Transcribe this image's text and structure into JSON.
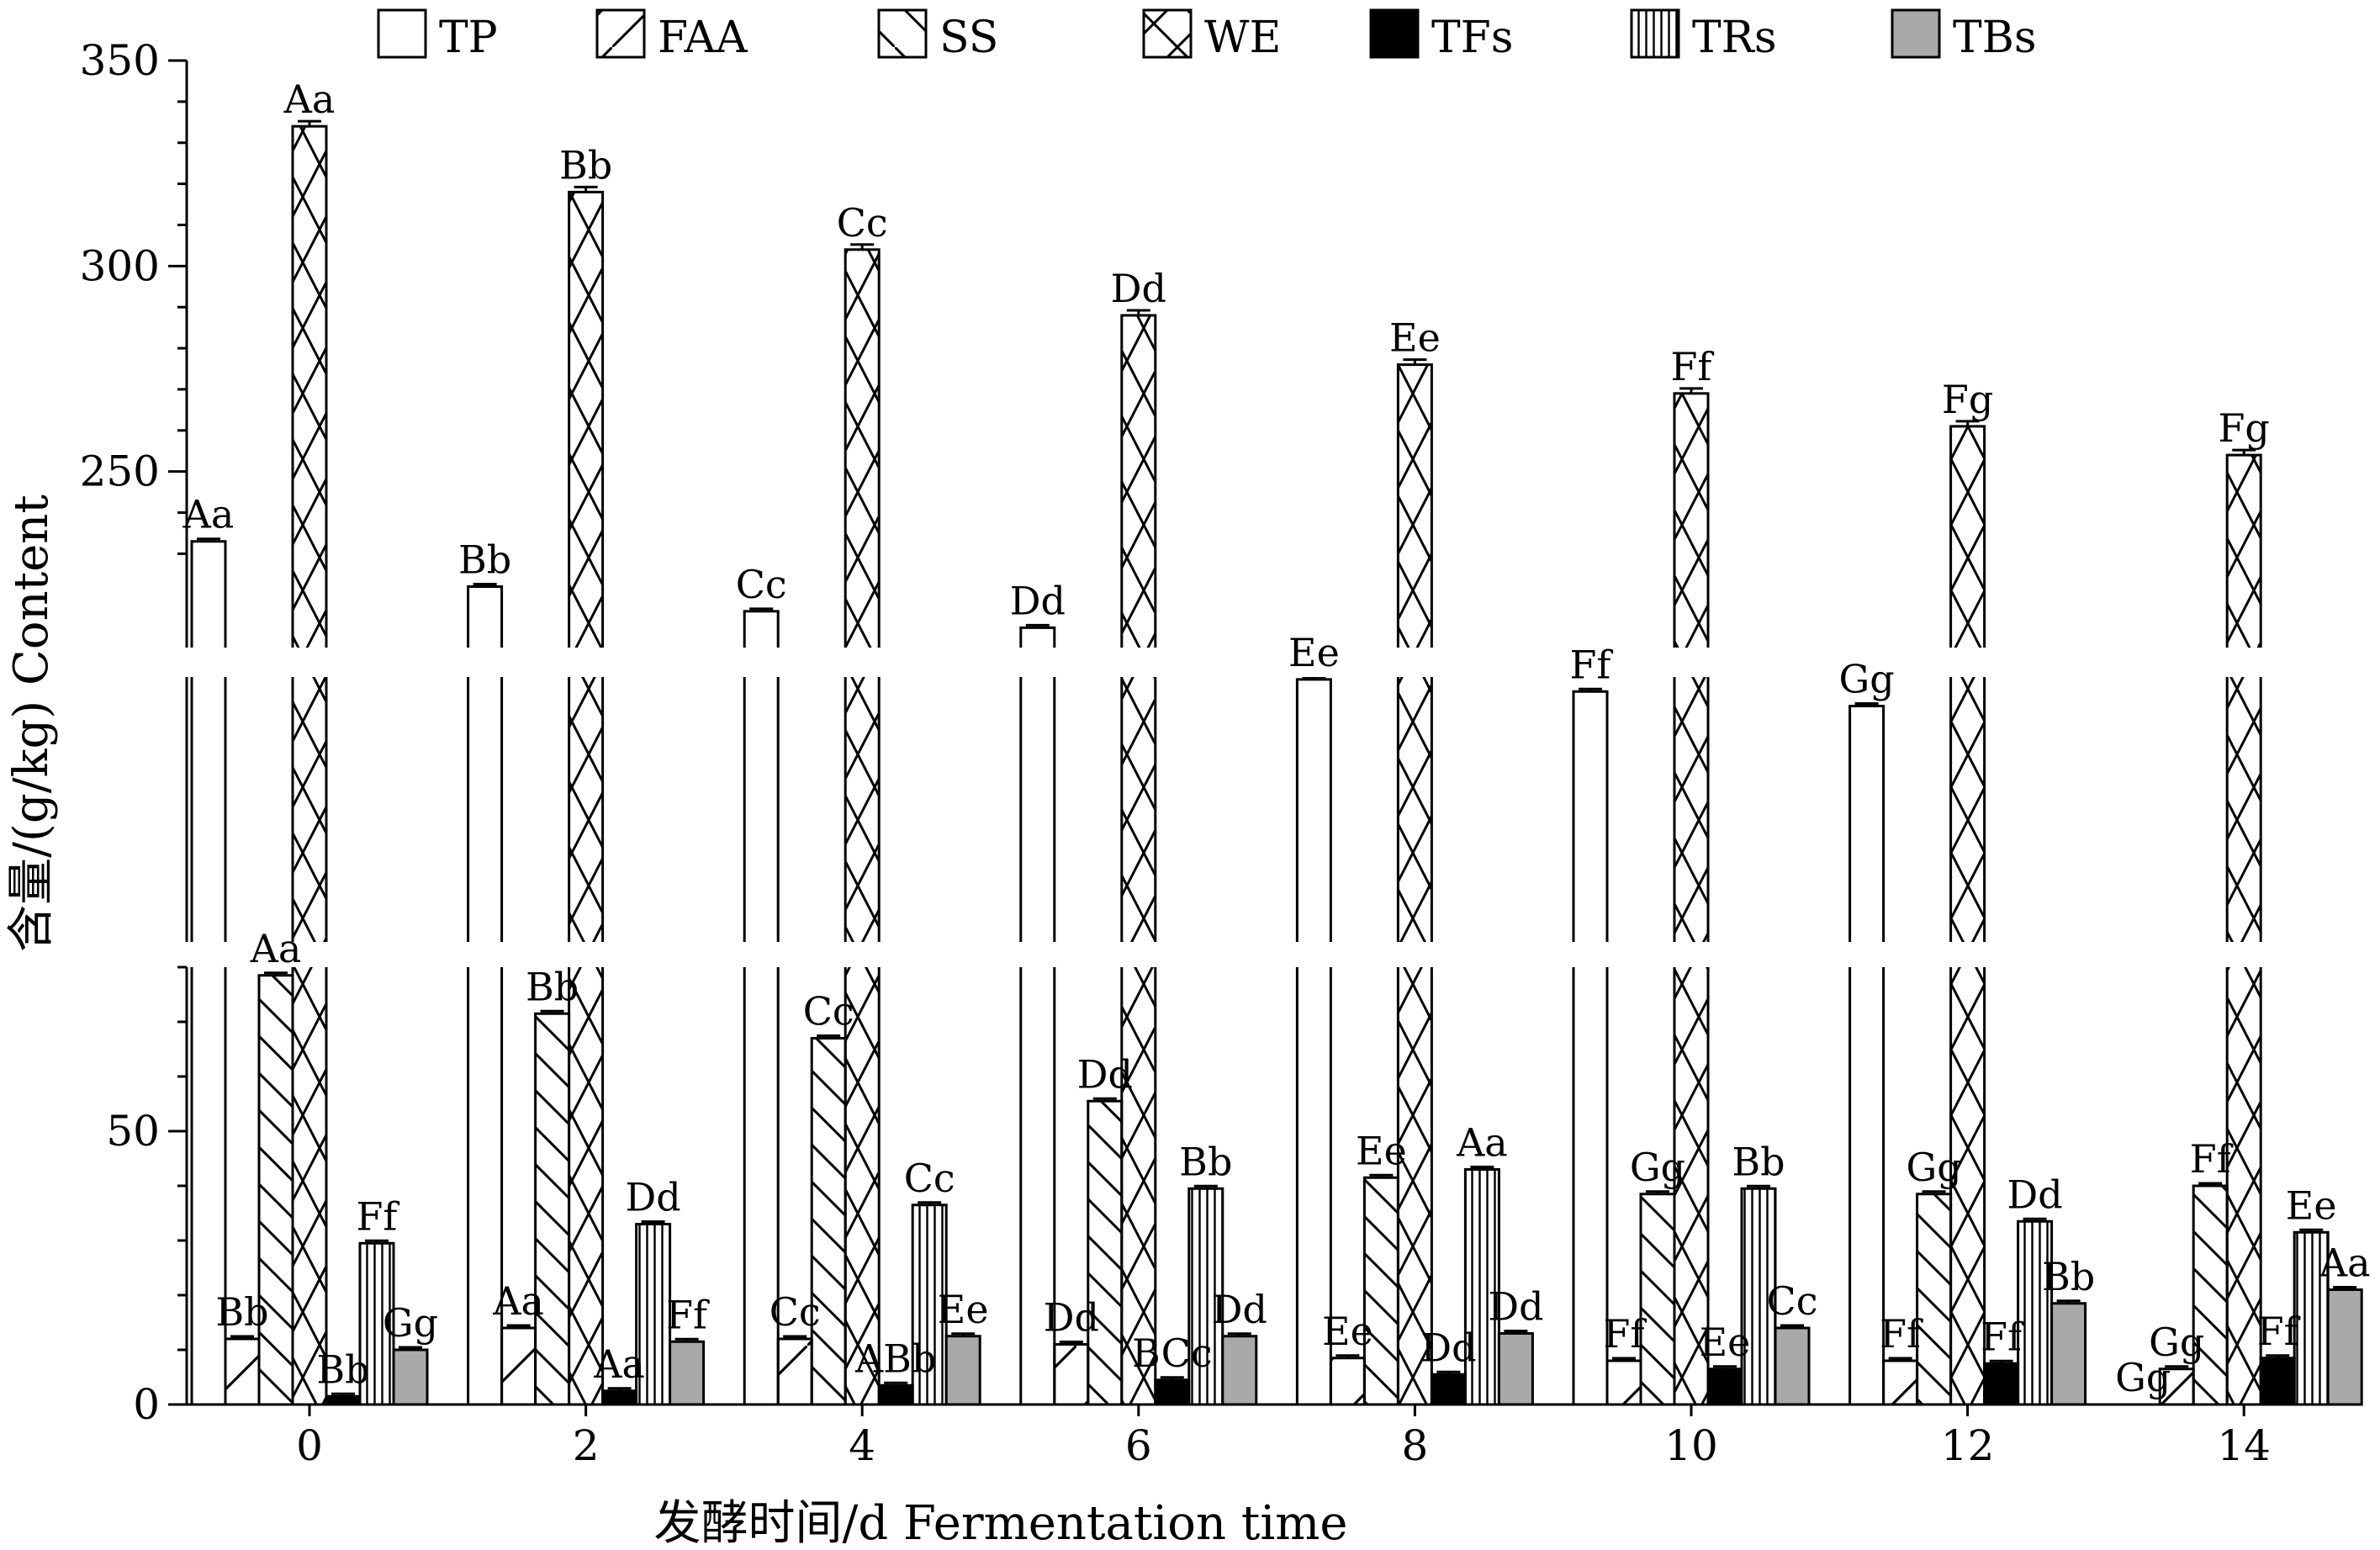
{
  "chart_data": {
    "type": "bar",
    "xlabel": "发酵时间/d  Fermentation time",
    "ylabel": "含量/(g/kg)  Content",
    "y_ticks": [
      "0",
      "50",
      "250",
      "300",
      "350"
    ],
    "y_segments": [
      {
        "min": 0,
        "max": 80
      },
      {
        "min": 200,
        "max": 350
      }
    ],
    "categories": [
      "0",
      "2",
      "4",
      "6",
      "8",
      "10",
      "12",
      "14"
    ],
    "legend_position": "top",
    "grid": false,
    "series": [
      {
        "name": "TP",
        "pattern": "empty",
        "values": [
          233,
          222,
          216,
          212,
          199,
          194,
          188,
          0
        ],
        "labels": [
          "Aa",
          "Bb",
          "Cc",
          "Dd",
          "Ee",
          "Ff",
          "Gg",
          "Gg"
        ]
      },
      {
        "name": "FAA",
        "pattern": "slash",
        "values": [
          12,
          14,
          12,
          11,
          8.5,
          8,
          8,
          6.5
        ],
        "labels": [
          "Bb",
          "Aa",
          "Cc",
          "Dd",
          "Ee",
          "Ff",
          "Ff",
          "Gg"
        ]
      },
      {
        "name": "SS",
        "pattern": "backslash",
        "values": [
          78.5,
          71.5,
          67,
          55.5,
          41.5,
          38.5,
          38.5,
          40
        ],
        "labels": [
          "Aa",
          "Bb",
          "Cc",
          "Dd",
          "Ee",
          "Gg",
          "Gg",
          "Ff"
        ]
      },
      {
        "name": "WE",
        "pattern": "cross",
        "values": [
          334,
          318,
          304,
          288,
          276,
          269,
          261,
          254
        ],
        "labels": [
          "Aa",
          "Bb",
          "Cc",
          "Dd",
          "Ee",
          "Ff",
          "Fg",
          "Fg"
        ]
      },
      {
        "name": "TFs",
        "pattern": "solid",
        "values": [
          1.5,
          2.5,
          3.5,
          4.5,
          5.5,
          6.5,
          7.5,
          8.5
        ],
        "labels": [
          "Bb",
          "Aa",
          "ABb",
          "BCc",
          "Dd",
          "Ee",
          "Ff",
          "Ff"
        ]
      },
      {
        "name": "TRs",
        "pattern": "vertical",
        "values": [
          29.5,
          33,
          36.5,
          39.5,
          43,
          39.5,
          33.5,
          31.5
        ],
        "labels": [
          "Ff",
          "Dd",
          "Cc",
          "Bb",
          "Aa",
          "Bb",
          "Dd",
          "Ee"
        ]
      },
      {
        "name": "TBs",
        "pattern": "gray",
        "values": [
          10,
          11.5,
          12.5,
          12.5,
          13,
          14,
          18.5,
          21
        ],
        "labels": [
          "Gg",
          "Ff",
          "Ee",
          "Dd",
          "Dd",
          "Cc",
          "Bb",
          "Aa"
        ]
      }
    ],
    "colors": {
      "ink": "#000000",
      "gray": "#a9a9a9",
      "fill": "#ffffff"
    }
  }
}
